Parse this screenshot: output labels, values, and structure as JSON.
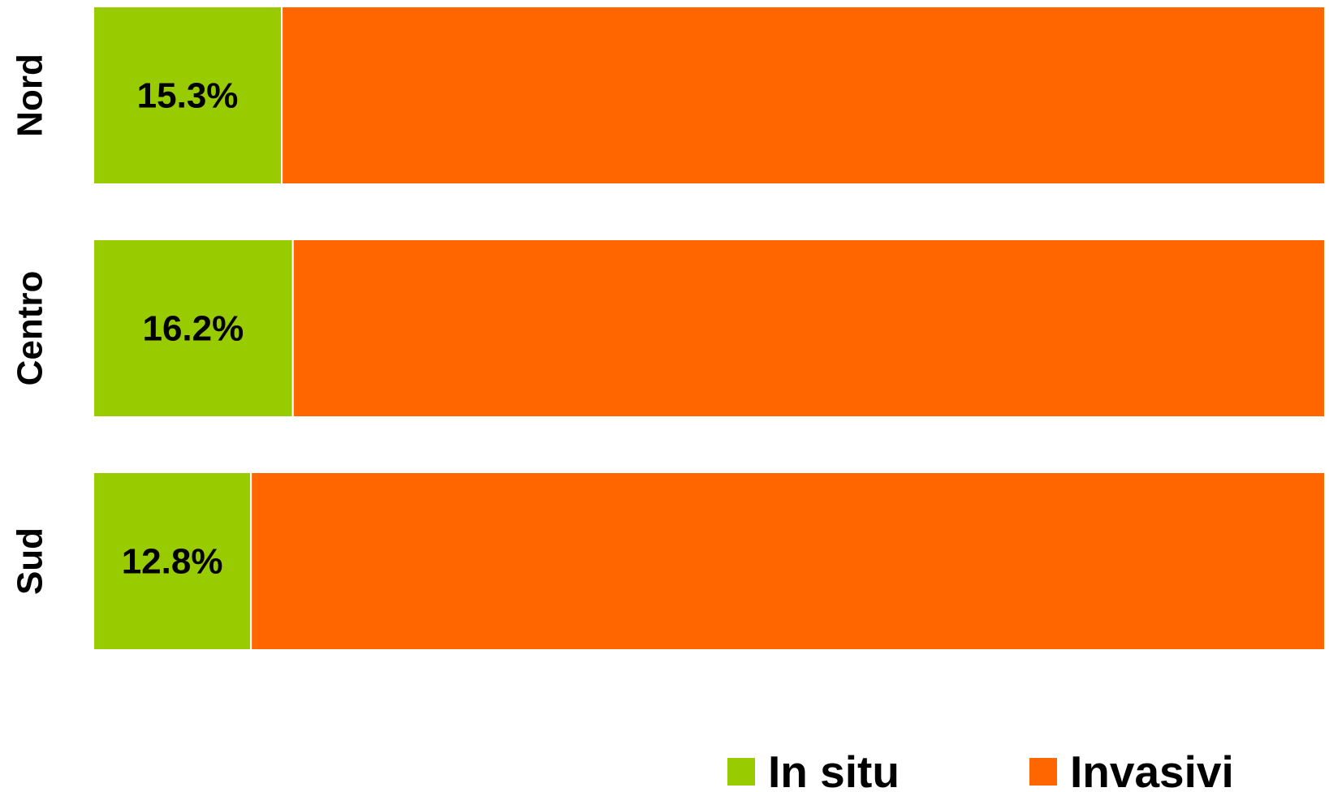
{
  "chart_data": {
    "type": "bar",
    "orientation": "horizontal",
    "stacked": "percent",
    "categories": [
      "Nord",
      "Centro",
      "Sud"
    ],
    "series": [
      {
        "name": "In situ",
        "values": [
          15.3,
          16.2,
          12.8
        ],
        "labels": [
          "15.3%",
          "16.2%",
          "12.8%"
        ],
        "color": "#99cc00"
      },
      {
        "name": "Invasivi",
        "values": [
          84.7,
          83.8,
          87.2
        ],
        "color": "#ff6600"
      }
    ],
    "xlim": [
      0,
      100
    ],
    "grid": false,
    "legend": "bottom-right"
  }
}
